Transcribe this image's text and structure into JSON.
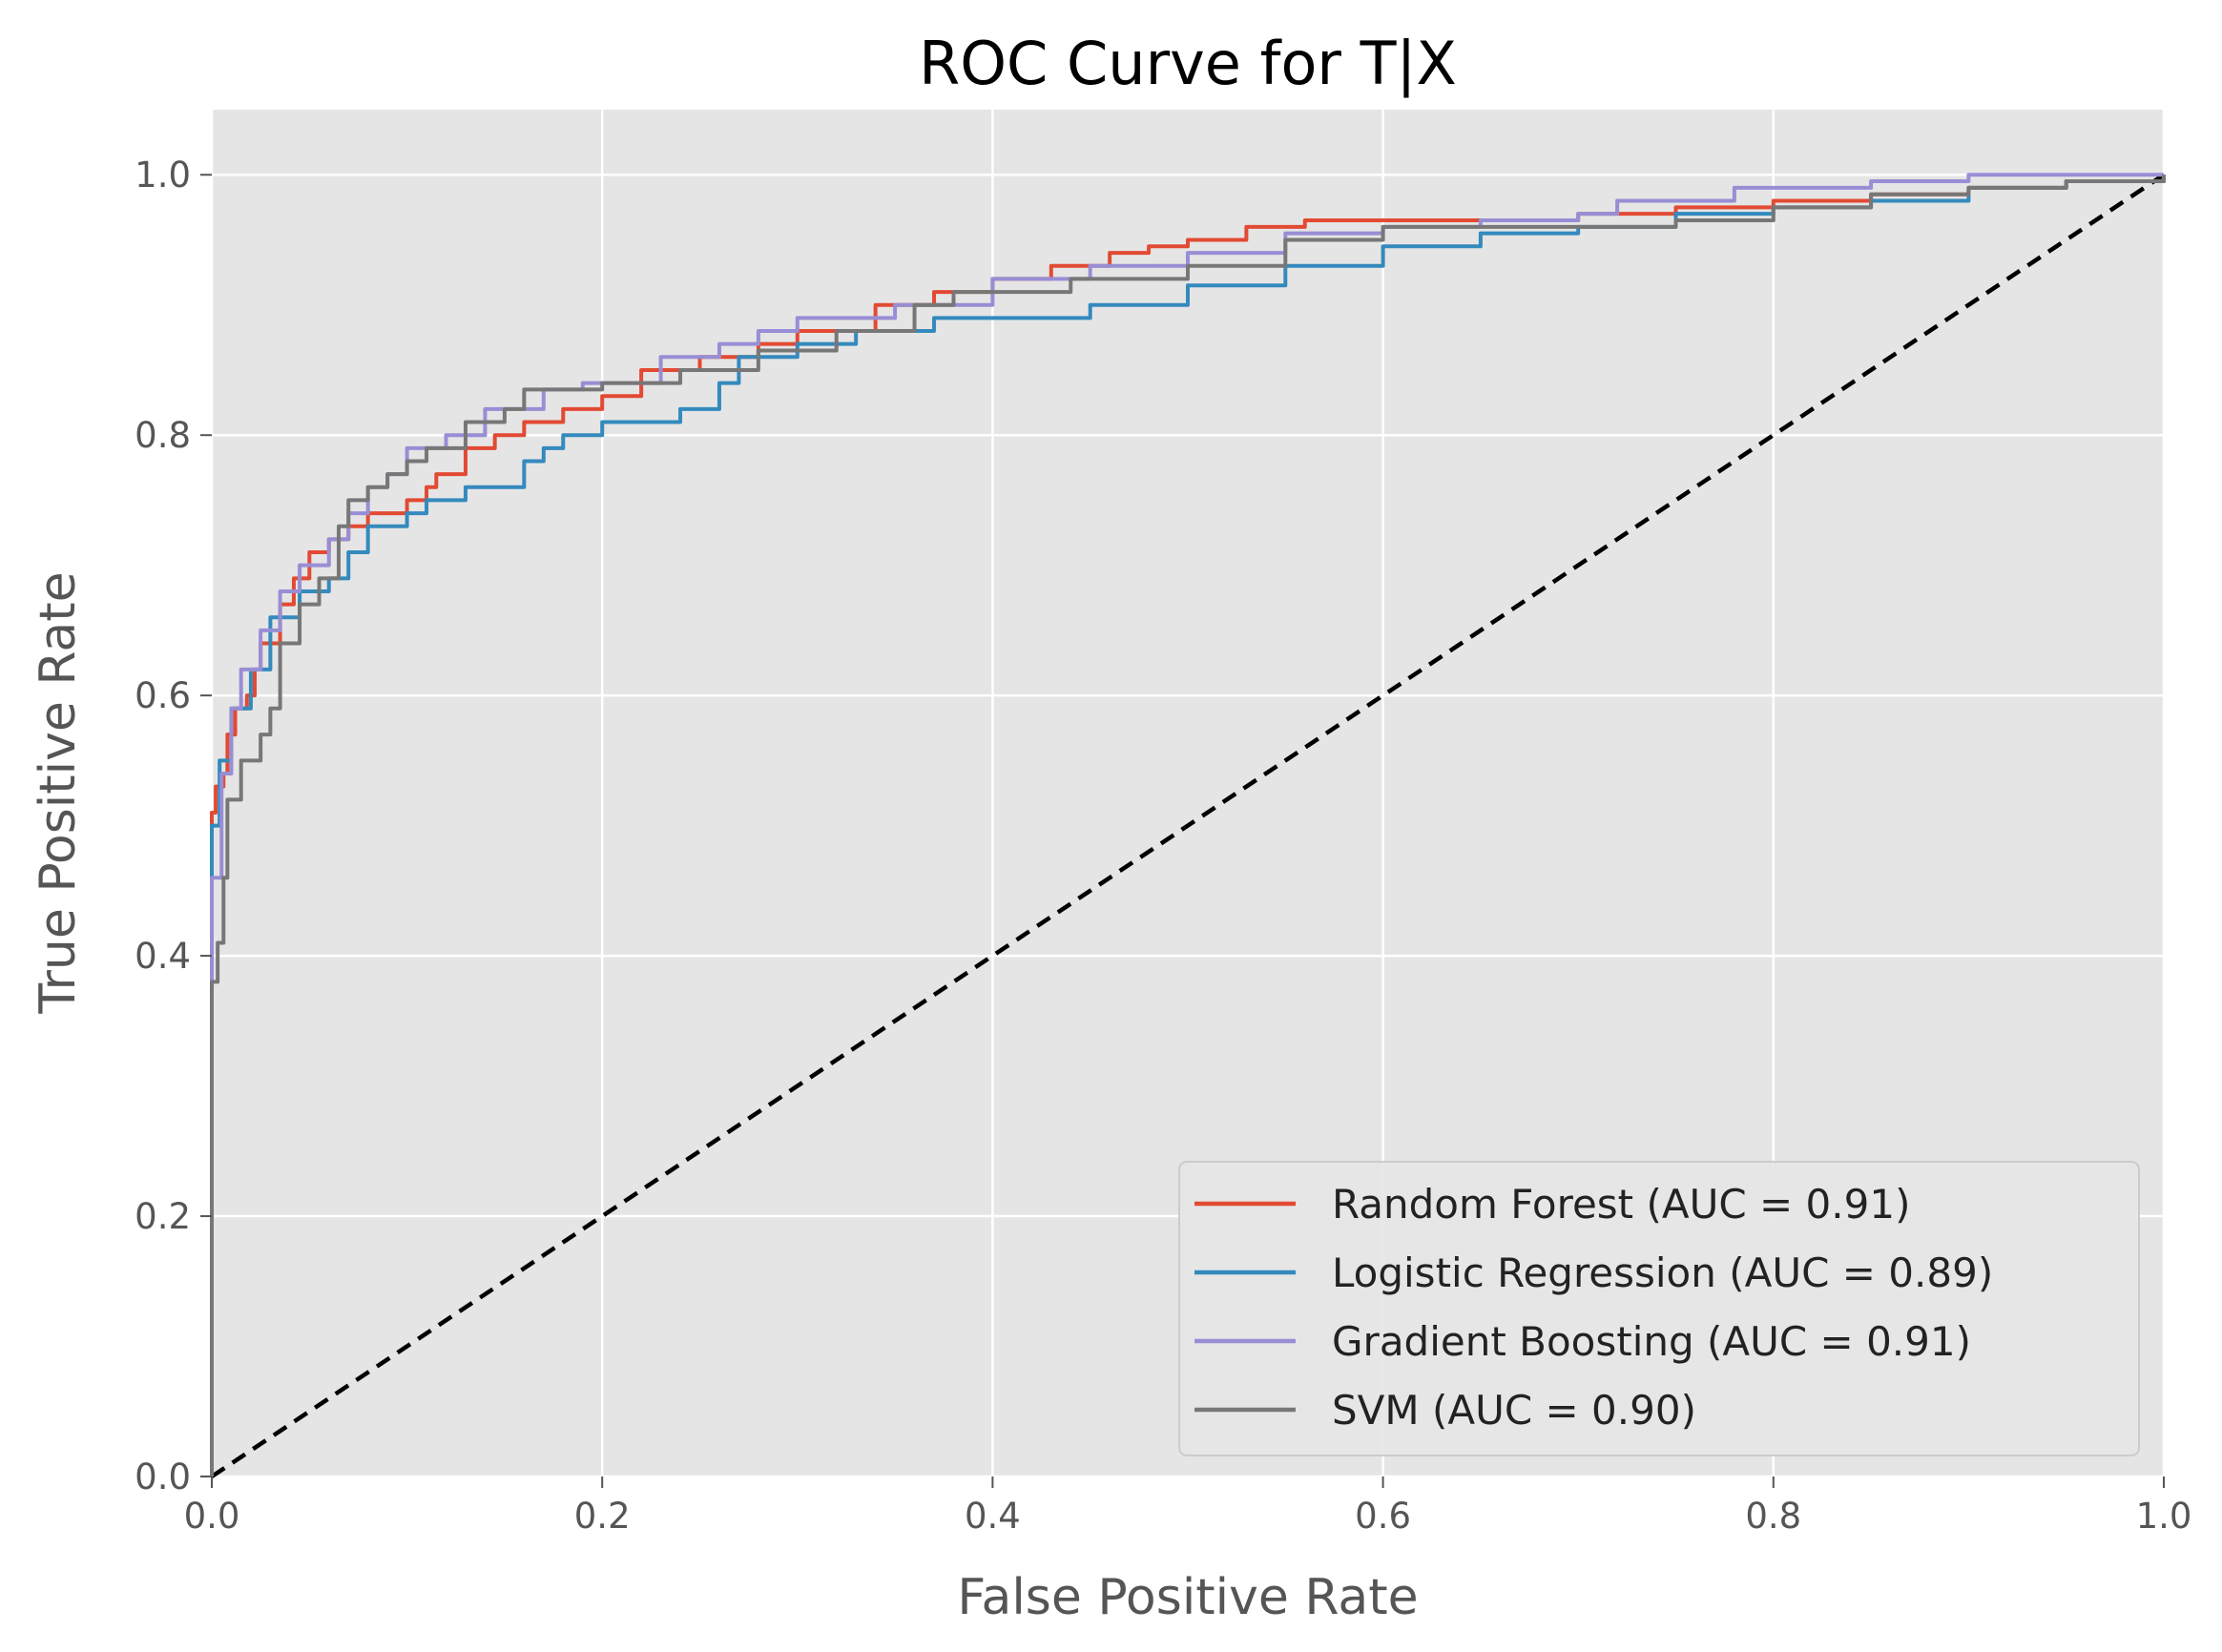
{
  "chart_data": {
    "type": "line",
    "title": "ROC Curve for T|X",
    "xlabel": "False Positive Rate",
    "ylabel": "True Positive Rate",
    "xlim": [
      0.0,
      1.0
    ],
    "ylim": [
      0.0,
      1.05
    ],
    "x_ticks": [
      "0.0",
      "0.2",
      "0.4",
      "0.6",
      "0.8",
      "1.0"
    ],
    "y_ticks": [
      "0.0",
      "0.2",
      "0.4",
      "0.6",
      "0.8",
      "1.0"
    ],
    "x_tick_values": [
      0.0,
      0.2,
      0.4,
      0.6,
      0.8,
      1.0
    ],
    "y_tick_values": [
      0.0,
      0.2,
      0.4,
      0.6,
      0.8,
      1.0
    ],
    "grid": true,
    "legend_position": "lower-right",
    "colors": {
      "plot_background": "#e5e5e5",
      "grid": "#ffffff",
      "diagonal": "#000000"
    },
    "series": [
      {
        "name": "Random Forest (AUC = 0.91)",
        "color": "#e24a33",
        "points": [
          [
            0,
            0
          ],
          [
            0,
            0.51
          ],
          [
            0.002,
            0.53
          ],
          [
            0.006,
            0.54
          ],
          [
            0.008,
            0.57
          ],
          [
            0.012,
            0.59
          ],
          [
            0.018,
            0.6
          ],
          [
            0.022,
            0.62
          ],
          [
            0.025,
            0.64
          ],
          [
            0.035,
            0.67
          ],
          [
            0.042,
            0.69
          ],
          [
            0.05,
            0.71
          ],
          [
            0.06,
            0.72
          ],
          [
            0.07,
            0.73
          ],
          [
            0.08,
            0.74
          ],
          [
            0.1,
            0.75
          ],
          [
            0.11,
            0.76
          ],
          [
            0.115,
            0.77
          ],
          [
            0.13,
            0.79
          ],
          [
            0.145,
            0.8
          ],
          [
            0.16,
            0.81
          ],
          [
            0.18,
            0.82
          ],
          [
            0.2,
            0.83
          ],
          [
            0.22,
            0.85
          ],
          [
            0.25,
            0.86
          ],
          [
            0.28,
            0.87
          ],
          [
            0.3,
            0.88
          ],
          [
            0.34,
            0.9
          ],
          [
            0.37,
            0.91
          ],
          [
            0.4,
            0.92
          ],
          [
            0.43,
            0.93
          ],
          [
            0.46,
            0.94
          ],
          [
            0.48,
            0.945
          ],
          [
            0.5,
            0.95
          ],
          [
            0.53,
            0.96
          ],
          [
            0.56,
            0.965
          ],
          [
            0.6,
            0.965
          ],
          [
            0.65,
            0.965
          ],
          [
            0.7,
            0.97
          ],
          [
            0.75,
            0.975
          ],
          [
            0.8,
            0.98
          ],
          [
            0.85,
            0.985
          ],
          [
            0.9,
            0.99
          ],
          [
            0.95,
            0.995
          ],
          [
            1,
            1
          ]
        ]
      },
      {
        "name": "Logistic Regression (AUC = 0.89)",
        "color": "#348abd",
        "points": [
          [
            0,
            0
          ],
          [
            0,
            0.5
          ],
          [
            0.004,
            0.55
          ],
          [
            0.01,
            0.59
          ],
          [
            0.02,
            0.62
          ],
          [
            0.03,
            0.66
          ],
          [
            0.045,
            0.68
          ],
          [
            0.06,
            0.69
          ],
          [
            0.07,
            0.71
          ],
          [
            0.08,
            0.73
          ],
          [
            0.1,
            0.74
          ],
          [
            0.11,
            0.75
          ],
          [
            0.13,
            0.76
          ],
          [
            0.16,
            0.78
          ],
          [
            0.17,
            0.79
          ],
          [
            0.18,
            0.8
          ],
          [
            0.2,
            0.81
          ],
          [
            0.24,
            0.82
          ],
          [
            0.26,
            0.84
          ],
          [
            0.27,
            0.86
          ],
          [
            0.3,
            0.87
          ],
          [
            0.33,
            0.88
          ],
          [
            0.37,
            0.89
          ],
          [
            0.45,
            0.9
          ],
          [
            0.5,
            0.915
          ],
          [
            0.55,
            0.93
          ],
          [
            0.6,
            0.945
          ],
          [
            0.65,
            0.955
          ],
          [
            0.7,
            0.96
          ],
          [
            0.75,
            0.97
          ],
          [
            0.8,
            0.975
          ],
          [
            0.85,
            0.98
          ],
          [
            0.9,
            0.99
          ],
          [
            0.95,
            0.995
          ],
          [
            1,
            1
          ]
        ]
      },
      {
        "name": "Gradient Boosting (AUC = 0.91)",
        "color": "#988ed5",
        "points": [
          [
            0,
            0
          ],
          [
            0,
            0.46
          ],
          [
            0.005,
            0.54
          ],
          [
            0.01,
            0.59
          ],
          [
            0.015,
            0.62
          ],
          [
            0.025,
            0.65
          ],
          [
            0.035,
            0.68
          ],
          [
            0.045,
            0.7
          ],
          [
            0.06,
            0.72
          ],
          [
            0.07,
            0.74
          ],
          [
            0.08,
            0.76
          ],
          [
            0.09,
            0.77
          ],
          [
            0.1,
            0.79
          ],
          [
            0.12,
            0.8
          ],
          [
            0.14,
            0.82
          ],
          [
            0.17,
            0.835
          ],
          [
            0.19,
            0.84
          ],
          [
            0.23,
            0.86
          ],
          [
            0.26,
            0.87
          ],
          [
            0.28,
            0.88
          ],
          [
            0.3,
            0.89
          ],
          [
            0.35,
            0.9
          ],
          [
            0.4,
            0.92
          ],
          [
            0.45,
            0.93
          ],
          [
            0.5,
            0.94
          ],
          [
            0.55,
            0.955
          ],
          [
            0.6,
            0.96
          ],
          [
            0.65,
            0.965
          ],
          [
            0.7,
            0.97
          ],
          [
            0.72,
            0.98
          ],
          [
            0.78,
            0.99
          ],
          [
            0.85,
            0.995
          ],
          [
            0.9,
            1
          ],
          [
            1,
            1
          ]
        ]
      },
      {
        "name": "SVM (AUC = 0.90)",
        "color": "#777777",
        "points": [
          [
            0,
            0
          ],
          [
            0,
            0.38
          ],
          [
            0.003,
            0.41
          ],
          [
            0.006,
            0.46
          ],
          [
            0.008,
            0.52
          ],
          [
            0.015,
            0.55
          ],
          [
            0.025,
            0.57
          ],
          [
            0.03,
            0.59
          ],
          [
            0.035,
            0.64
          ],
          [
            0.045,
            0.67
          ],
          [
            0.055,
            0.69
          ],
          [
            0.065,
            0.73
          ],
          [
            0.07,
            0.75
          ],
          [
            0.08,
            0.76
          ],
          [
            0.09,
            0.77
          ],
          [
            0.1,
            0.78
          ],
          [
            0.11,
            0.79
          ],
          [
            0.13,
            0.81
          ],
          [
            0.15,
            0.82
          ],
          [
            0.16,
            0.835
          ],
          [
            0.2,
            0.84
          ],
          [
            0.24,
            0.85
          ],
          [
            0.28,
            0.865
          ],
          [
            0.32,
            0.88
          ],
          [
            0.36,
            0.9
          ],
          [
            0.38,
            0.91
          ],
          [
            0.44,
            0.92
          ],
          [
            0.5,
            0.93
          ],
          [
            0.55,
            0.95
          ],
          [
            0.6,
            0.96
          ],
          [
            0.65,
            0.96
          ],
          [
            0.75,
            0.965
          ],
          [
            0.8,
            0.975
          ],
          [
            0.85,
            0.985
          ],
          [
            0.9,
            0.99
          ],
          [
            0.95,
            0.995
          ],
          [
            1,
            1
          ]
        ]
      }
    ],
    "reference_line": {
      "style": "dashed",
      "color": "#000000",
      "points": [
        [
          0,
          0
        ],
        [
          1,
          1
        ]
      ]
    }
  }
}
